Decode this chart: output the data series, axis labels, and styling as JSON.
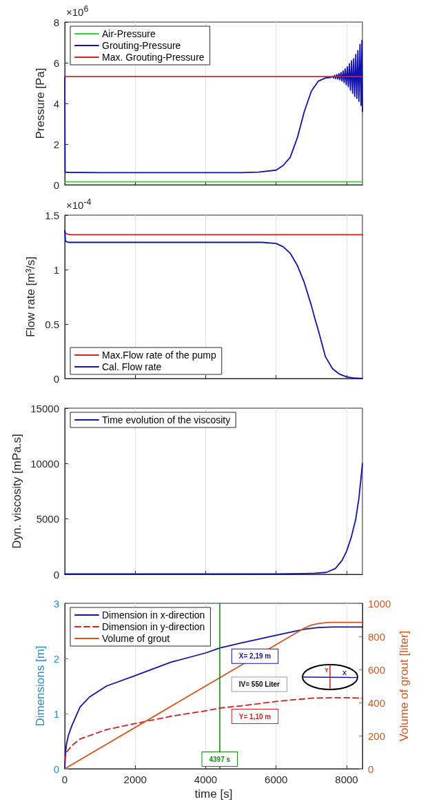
{
  "chart_data": [
    {
      "type": "line",
      "ylabel": "Pressure [Pa]",
      "annotations": [
        "×10$^{6}$"
      ],
      "xlim": [
        0,
        8450
      ],
      "xticks": [
        0,
        2000,
        4000,
        6000,
        8000
      ],
      "ylim": [
        0,
        8
      ],
      "yticks": [
        0,
        2,
        4,
        6,
        8
      ],
      "grid": "x",
      "legend": "top left",
      "tick_labels": "y",
      "series": [
        {
          "name": "Air-Pressure",
          "color": "#22dd22",
          "x": [
            0,
            8450
          ],
          "values": [
            0.15,
            0.15
          ]
        },
        {
          "name": "Grouting-Pressure",
          "color": "#1010b0",
          "x": [
            0,
            10,
            100,
            1000,
            3000,
            5000,
            5500,
            6000,
            6200,
            6400,
            6600,
            6800,
            7000,
            7200,
            7400,
            7550,
            7600,
            7630,
            7660,
            7690,
            7720,
            7750,
            7780,
            7810,
            7840,
            7870,
            7900,
            7930,
            7960,
            7990,
            8020,
            8050,
            8080,
            8110,
            8140,
            8170,
            8200,
            8230,
            8260,
            8290,
            8320,
            8350,
            8380,
            8410,
            8435,
            8450
          ],
          "values": [
            5.32,
            0.62,
            0.61,
            0.6,
            0.6,
            0.6,
            0.62,
            0.72,
            0.95,
            1.35,
            2.3,
            3.6,
            4.6,
            5.1,
            5.25,
            5.28,
            5.33,
            5.25,
            5.38,
            5.22,
            5.42,
            5.2,
            5.46,
            5.16,
            5.52,
            5.1,
            5.6,
            5.02,
            5.7,
            4.92,
            5.8,
            4.82,
            5.95,
            4.65,
            6.1,
            4.5,
            6.2,
            4.35,
            6.4,
            4.25,
            6.6,
            4.1,
            6.9,
            3.9,
            7.1,
            3.6
          ]
        },
        {
          "name": "Max. Grouting-Pressure",
          "color": "#d42020",
          "x": [
            0,
            8450
          ],
          "values": [
            5.32,
            5.32
          ]
        }
      ]
    },
    {
      "type": "line",
      "ylabel": "Flow rate [m³/s]",
      "annotations": [
        "×10$^{-4}$"
      ],
      "xlim": [
        0,
        8450
      ],
      "xticks": [
        0,
        2000,
        4000,
        6000,
        8000
      ],
      "ylim": [
        0,
        1.5
      ],
      "yticks": [
        0,
        0.5,
        1,
        1.5
      ],
      "grid": "x",
      "legend": "bottom left",
      "tick_labels": "y",
      "series": [
        {
          "name": "Max.Flow rate of the pump",
          "color": "#d42020",
          "x": [
            0,
            30,
            150,
            8450
          ],
          "values": [
            1.36,
            1.33,
            1.32,
            1.32
          ]
        },
        {
          "name": "Cal. Flow rate",
          "color": "#1010b0",
          "x": [
            0,
            20,
            100,
            1000,
            3000,
            5000,
            5600,
            6000,
            6200,
            6400,
            6600,
            6800,
            7000,
            7100,
            7200,
            7400,
            7600,
            7800,
            8000,
            8200,
            8450
          ],
          "values": [
            1.36,
            1.26,
            1.25,
            1.25,
            1.25,
            1.25,
            1.25,
            1.24,
            1.21,
            1.15,
            1.04,
            0.88,
            0.67,
            0.55,
            0.44,
            0.2,
            0.09,
            0.04,
            0.015,
            0.005,
            0
          ]
        }
      ]
    },
    {
      "type": "line",
      "ylabel": "Dyn. viscosity [mPa.s]",
      "xlim": [
        0,
        8450
      ],
      "xticks": [
        0,
        2000,
        4000,
        6000,
        8000
      ],
      "ylim": [
        0,
        15000
      ],
      "yticks": [
        0,
        5000,
        10000,
        15000
      ],
      "grid": "x",
      "legend": "top left",
      "tick_labels": "y",
      "series": [
        {
          "name": "Time evolution of the viscosity",
          "color": "#1010b0",
          "x": [
            0,
            2000,
            4000,
            6000,
            6800,
            7100,
            7420,
            7680,
            7870,
            8000,
            8130,
            8260,
            8350,
            8450
          ],
          "values": [
            30,
            30,
            30,
            40,
            70,
            100,
            170,
            520,
            1250,
            2080,
            3320,
            4980,
            6850,
            10000
          ]
        }
      ]
    },
    {
      "type": "line",
      "xlabel": "time [s]",
      "ylabel": "Dimensions [m]",
      "y2label": "Volume of grout [liter]",
      "xlim": [
        0,
        8450
      ],
      "xticks": [
        0,
        2000,
        4000,
        6000,
        8000
      ],
      "ylim": [
        0,
        3
      ],
      "yticks": [
        0,
        1,
        2,
        3
      ],
      "y2lim": [
        0,
        1000
      ],
      "y2ticks": [
        0,
        200,
        400,
        600,
        800,
        1000
      ],
      "grid": "x",
      "legend": "top left",
      "ref_lines": [
        {
          "axis": "x",
          "value": 4397,
          "label": "4397 s",
          "color": "#108a10"
        }
      ],
      "annotations": [
        {
          "text": "X= 2,19 m",
          "x": 4397,
          "y": 2.19
        },
        {
          "text": "Y= 1,10 m",
          "x": 4397,
          "y": 1.1
        },
        "IV= 550 Liter",
        "Y",
        "X"
      ],
      "series": [
        {
          "name": "Dimension in x-direction",
          "color": "#1010b0",
          "x": [
            0,
            20,
            50,
            100,
            200,
            434,
            700,
            1184,
            2000,
            3000,
            4000,
            4397,
            5000,
            6000,
            6800,
            7200,
            7600,
            8450
          ],
          "values": [
            0,
            0.3,
            0.45,
            0.6,
            0.78,
            1.12,
            1.3,
            1.5,
            1.69,
            1.93,
            2.1,
            2.19,
            2.28,
            2.42,
            2.53,
            2.56,
            2.57,
            2.57
          ]
        },
        {
          "name": "Dimension in y-direction",
          "color": "#d42020",
          "line_style": "dashed",
          "x": [
            0,
            50,
            200,
            434,
            1184,
            2000,
            3000,
            4000,
            4397,
            5000,
            6000,
            7000,
            7600,
            8000,
            8450
          ],
          "values": [
            0.15,
            0.3,
            0.42,
            0.54,
            0.71,
            0.82,
            0.95,
            1.05,
            1.1,
            1.14,
            1.22,
            1.28,
            1.29,
            1.29,
            1.28
          ]
        },
        {
          "name": "Volume of grout",
          "color": "#d95319",
          "axis": "y2",
          "x": [
            0,
            4397,
            6800,
            7000,
            7200,
            7400,
            7600,
            8450
          ],
          "values": [
            0,
            550,
            850,
            868,
            878,
            883,
            885,
            885
          ]
        }
      ]
    }
  ]
}
